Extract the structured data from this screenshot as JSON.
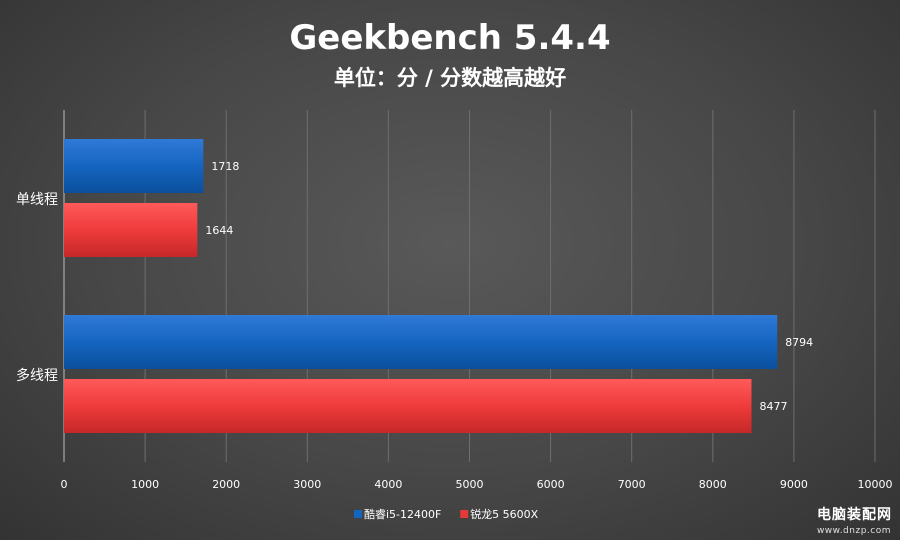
{
  "chart_data": {
    "type": "bar",
    "orientation": "horizontal",
    "title": "Geekbench 5.4.4",
    "subtitle": "单位：分 / 分数越高越好",
    "categories": [
      "单线程",
      "多线程"
    ],
    "series": [
      {
        "name": "酷睿i5-12400F",
        "color": "#1565c0",
        "values": [
          1718,
          8794
        ]
      },
      {
        "name": "锐龙5 5600X",
        "color": "#e53935",
        "values": [
          1644,
          8477
        ]
      }
    ],
    "xlim": [
      0,
      10000
    ],
    "xticks": [
      "0",
      "1000",
      "2000",
      "3000",
      "4000",
      "5000",
      "6000",
      "7000",
      "8000",
      "9000",
      "10000"
    ],
    "grid": true,
    "legend": "bottom"
  },
  "watermark": {
    "name": "电脑装配网",
    "url": "www.dnzp.com"
  }
}
